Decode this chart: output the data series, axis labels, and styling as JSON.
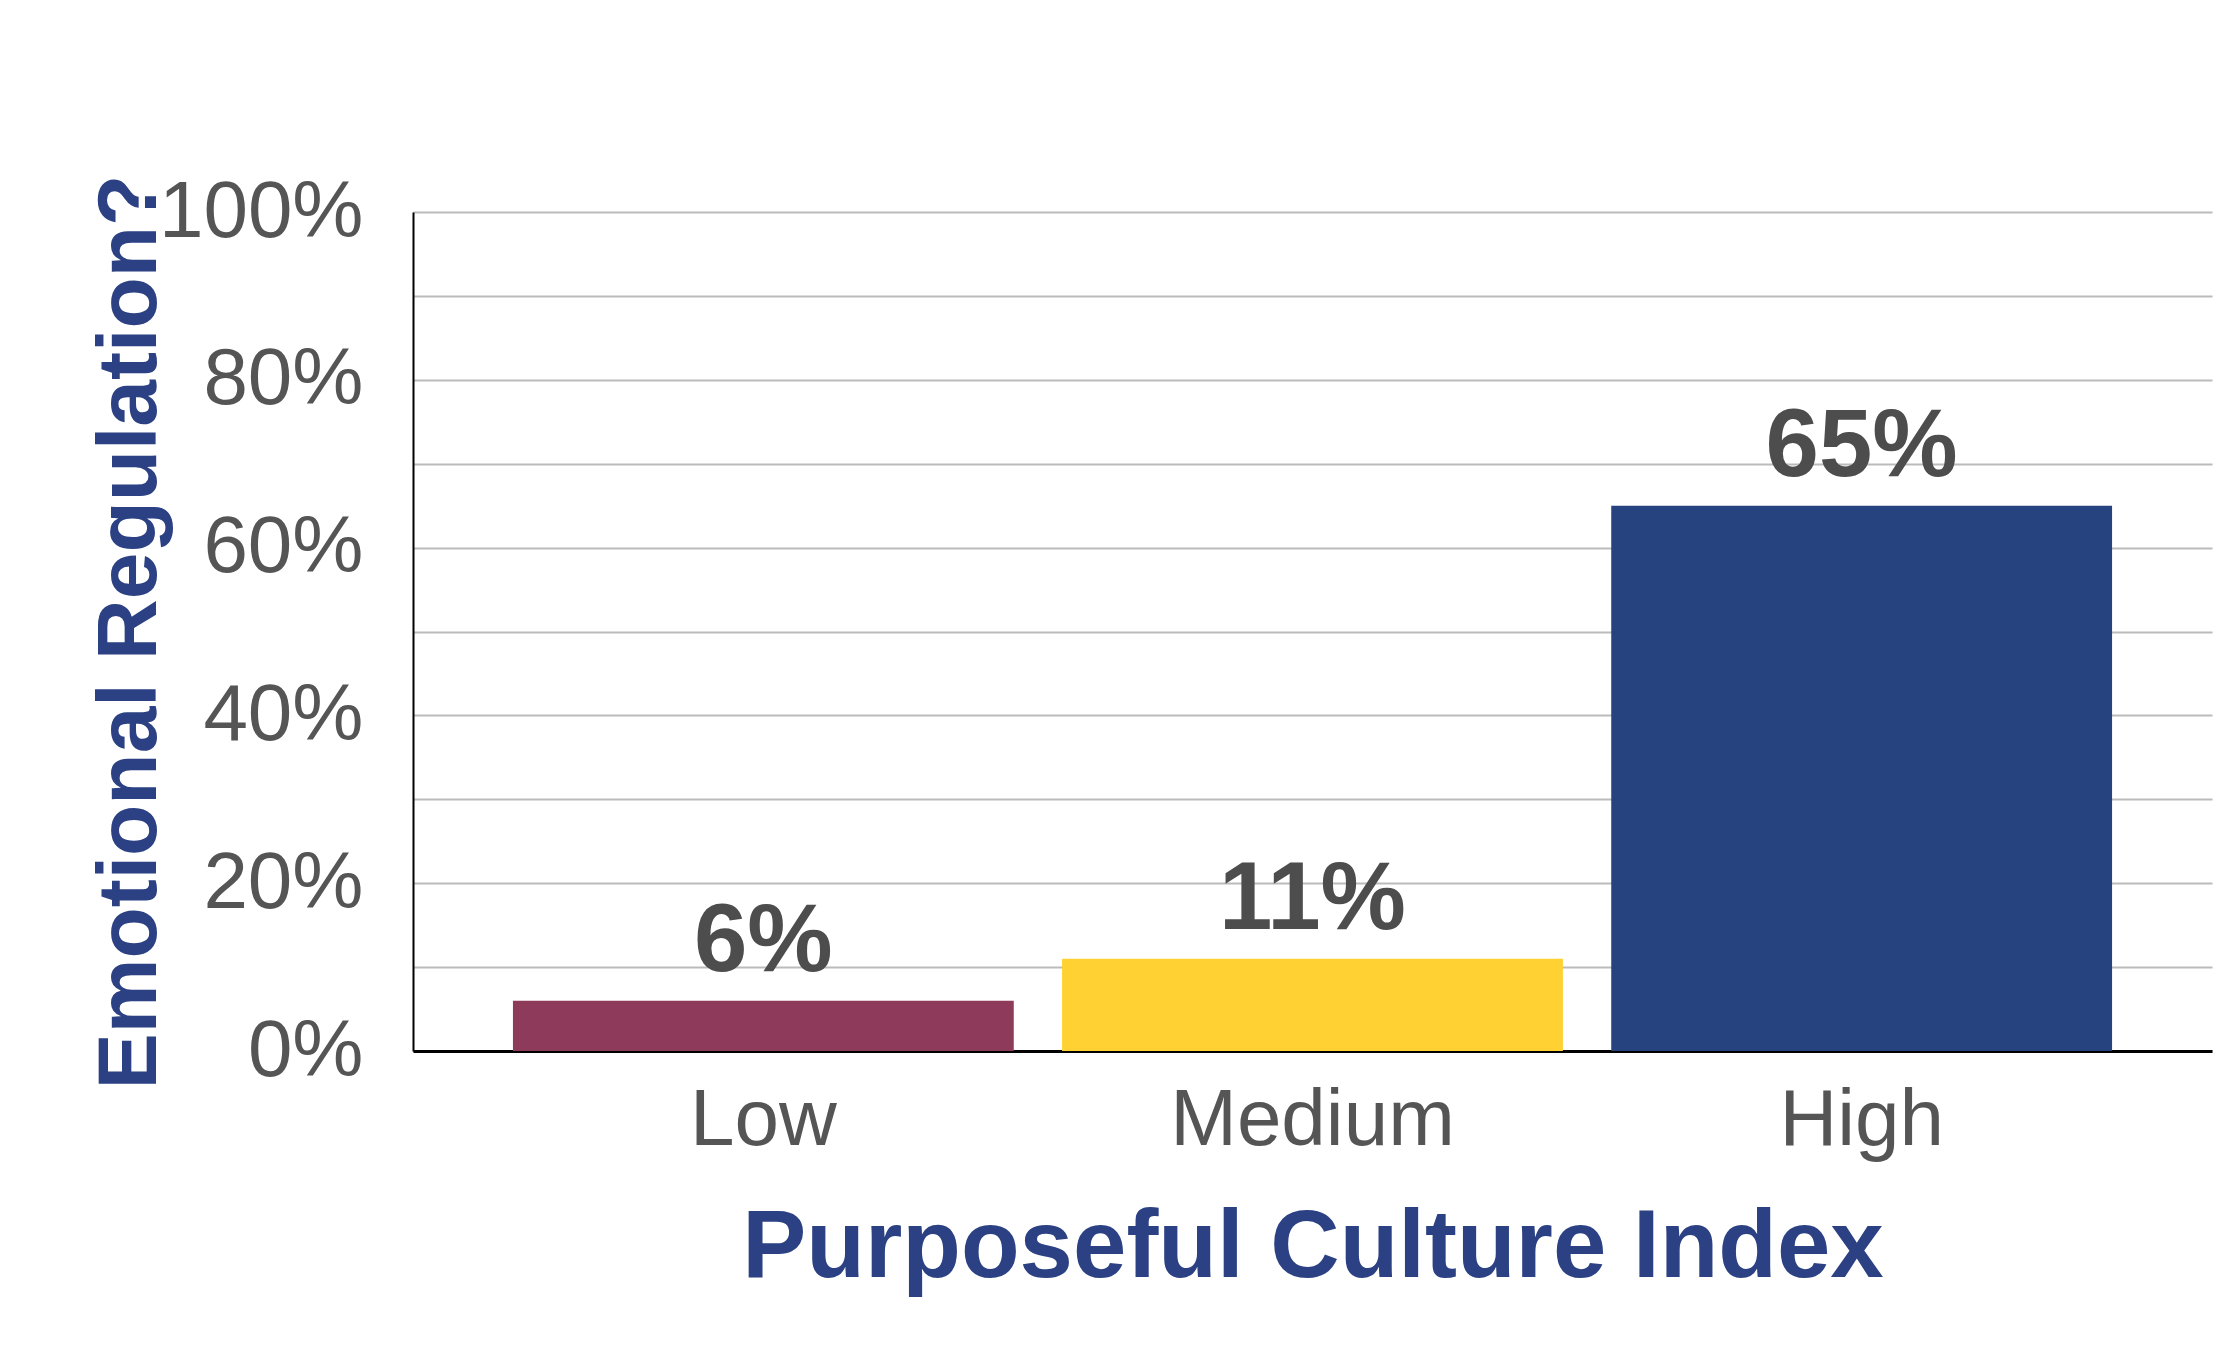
{
  "chart_data": {
    "type": "bar",
    "xlabel": "Purposeful Culture Index",
    "ylabel": "Emotional Regulation?",
    "categories": [
      "Low",
      "Medium",
      "High"
    ],
    "values": [
      6,
      11,
      65
    ],
    "colors": [
      "#8e3a5a",
      "#ffd133",
      "#26437f"
    ],
    "value_labels": [
      "6%",
      "11%",
      "65%"
    ],
    "ylim": [
      0,
      100
    ],
    "yticks": [
      {
        "value": 0,
        "label": "0%"
      },
      {
        "value": 10,
        "label": null
      },
      {
        "value": 20,
        "label": "20%"
      },
      {
        "value": 30,
        "label": null
      },
      {
        "value": 40,
        "label": "40%"
      },
      {
        "value": 50,
        "label": null
      },
      {
        "value": 60,
        "label": "60%"
      },
      {
        "value": 70,
        "label": null
      },
      {
        "value": 80,
        "label": "80%"
      },
      {
        "value": 90,
        "label": null
      },
      {
        "value": 100,
        "label": "100%"
      }
    ],
    "grid": "y"
  }
}
